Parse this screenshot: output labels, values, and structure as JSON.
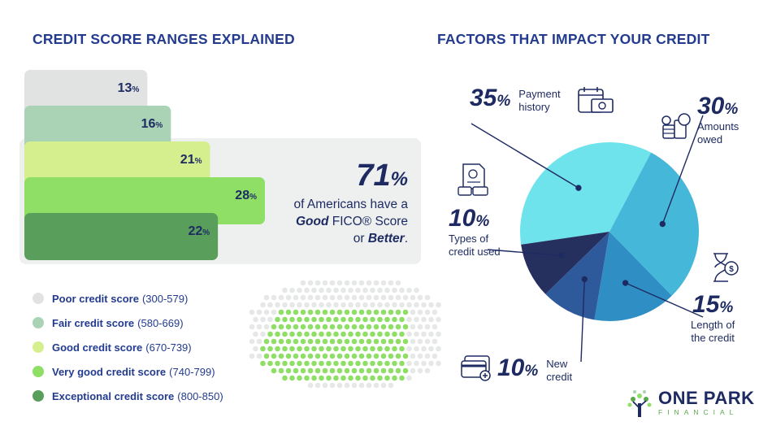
{
  "left": {
    "title": "CREDIT SCORE RANGES EXPLAINED",
    "stat": {
      "value": "71",
      "pct": "%",
      "line1": "of Americans have a",
      "line2_bold": "Good",
      "line2_rest": " FICO® Score",
      "line3_pre": "or ",
      "line3_bold": "Better",
      "line3_post": "."
    }
  },
  "right": {
    "title": "FACTORS THAT IMPACT YOUR CREDIT"
  },
  "chart_data": [
    {
      "type": "bar",
      "orientation": "horizontal",
      "categories": [
        "Poor credit score (300-579)",
        "Fair credit score (580-669)",
        "Good credit score (670-739)",
        "Very good credit score (740-799)",
        "Exceptional credit score (800-850)"
      ],
      "legend": [
        {
          "name": "Poor credit score",
          "range": "(300-579)",
          "color": "#e1e3e3"
        },
        {
          "name": "Fair credit score",
          "range": "(580-669)",
          "color": "#a9d3b4"
        },
        {
          "name": "Good credit score",
          "range": "(670-739)",
          "color": "#d6ef8e"
        },
        {
          "name": "Very good credit score",
          "range": "(740-799)",
          "color": "#8fdf66"
        },
        {
          "name": "Exceptional credit score",
          "range": "(800-850)",
          "color": "#5a9e5c"
        }
      ],
      "values": [
        13,
        16,
        21,
        28,
        22
      ],
      "value_labels": [
        "13",
        "16",
        "21",
        "28",
        "22"
      ],
      "unit": "%",
      "xlim": [
        0,
        28
      ],
      "colors": [
        "#e1e3e3",
        "#a9d3b4",
        "#d6ef8e",
        "#8fdf66",
        "#5a9e5c"
      ]
    },
    {
      "type": "pie",
      "slices": [
        {
          "label_l1": "Payment",
          "label_l2": "history",
          "value": 35,
          "color": "#6ee3ec"
        },
        {
          "label_l1": "Amounts",
          "label_l2": "owed",
          "value": 30,
          "color": "#45b8d9"
        },
        {
          "label_l1": "Length of",
          "label_l2": "the credit",
          "value": 15,
          "color": "#2f8fc4"
        },
        {
          "label_l1": "New",
          "label_l2": "credit",
          "value": 10,
          "color": "#2e5a9c"
        },
        {
          "label_l1": "Types of",
          "label_l2": "credit used",
          "value": 10,
          "color": "#26305f"
        }
      ],
      "unit": "%"
    }
  ],
  "logo": {
    "name": "ONE PARK",
    "sub": "FINANCIAL",
    "color": "#1e2b63",
    "accent": "#5aa84a"
  }
}
